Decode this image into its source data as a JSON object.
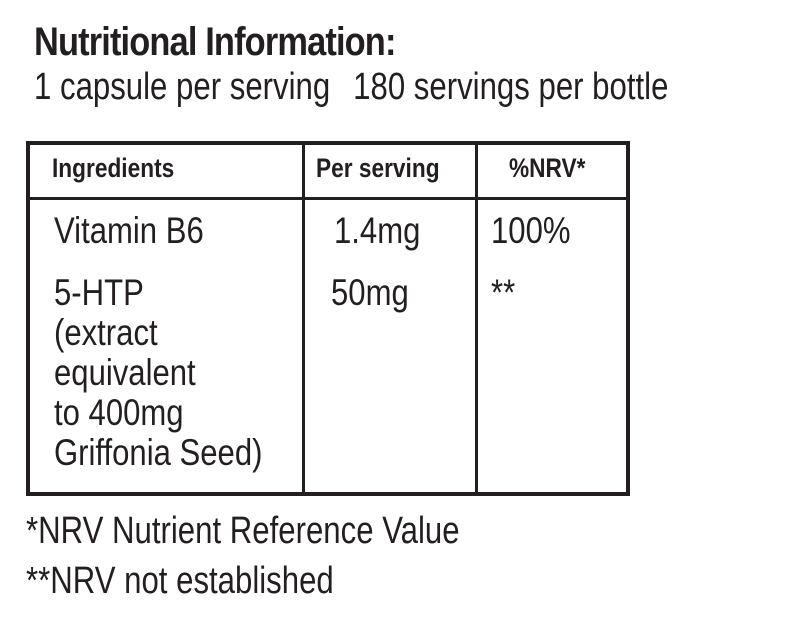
{
  "header": {
    "title": "Nutritional Information:",
    "serving_size": "1 capsule per serving",
    "servings_per_bottle": "180 servings per bottle"
  },
  "table": {
    "columns": [
      "Ingredients",
      "Per serving",
      "%NRV*"
    ],
    "rows": [
      {
        "ingredient_lines": [
          "Vitamin B6"
        ],
        "per_serving": "1.4mg",
        "nrv": "100%"
      },
      {
        "ingredient_lines": [
          "5-HTP",
          "(extract",
          "equivalent",
          "to 400mg",
          "Griffonia Seed)"
        ],
        "per_serving": "50mg",
        "nrv": "**"
      }
    ]
  },
  "footnotes": [
    "*NRV Nutrient Reference Value",
    "**NRV not established"
  ],
  "colors": {
    "text": "#231f20",
    "background": "#ffffff"
  }
}
